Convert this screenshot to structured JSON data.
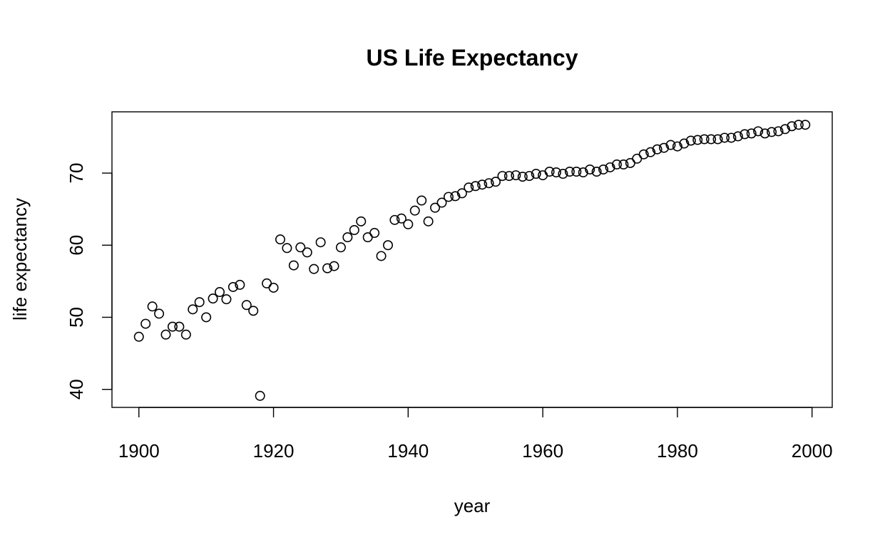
{
  "chart_data": {
    "type": "scatter",
    "title": "US Life Expectancy",
    "xlabel": "year",
    "ylabel": "life expectancy",
    "xlim": [
      1896,
      2003
    ],
    "ylim": [
      37.5,
      78.5
    ],
    "x_ticks": [
      1900,
      1920,
      1940,
      1960,
      1980,
      2000
    ],
    "y_ticks": [
      40,
      50,
      60,
      70
    ],
    "grid": false,
    "legend": "none",
    "marker": "open-circle",
    "series": [
      {
        "x": [
          1900,
          1901,
          1902,
          1903,
          1904,
          1905,
          1906,
          1907,
          1908,
          1909,
          1910,
          1911,
          1912,
          1913,
          1914,
          1915,
          1916,
          1917,
          1918,
          1919,
          1920,
          1921,
          1922,
          1923,
          1924,
          1925,
          1926,
          1927,
          1928,
          1929,
          1930,
          1931,
          1932,
          1933,
          1934,
          1935,
          1936,
          1937,
          1938,
          1939,
          1940,
          1941,
          1942,
          1943,
          1944,
          1945,
          1946,
          1947,
          1948,
          1949,
          1950,
          1951,
          1952,
          1953,
          1954,
          1955,
          1956,
          1957,
          1958,
          1959,
          1960,
          1961,
          1962,
          1963,
          1964,
          1965,
          1966,
          1967,
          1968,
          1969,
          1970,
          1971,
          1972,
          1973,
          1974,
          1975,
          1976,
          1977,
          1978,
          1979,
          1980,
          1981,
          1982,
          1983,
          1984,
          1985,
          1986,
          1987,
          1988,
          1989,
          1990,
          1991,
          1992,
          1993,
          1994,
          1995,
          1996,
          1997,
          1998,
          1999
        ],
        "y": [
          47.3,
          49.1,
          51.5,
          50.5,
          47.6,
          48.7,
          48.7,
          47.6,
          51.1,
          52.1,
          50.0,
          52.6,
          53.5,
          52.5,
          54.2,
          54.5,
          51.7,
          50.9,
          39.1,
          54.7,
          54.1,
          60.8,
          59.6,
          57.2,
          59.7,
          59.0,
          56.7,
          60.4,
          56.8,
          57.1,
          59.7,
          61.1,
          62.1,
          63.3,
          61.1,
          61.7,
          58.5,
          60.0,
          63.5,
          63.7,
          62.9,
          64.8,
          66.2,
          63.3,
          65.2,
          65.9,
          66.7,
          66.8,
          67.2,
          68.0,
          68.2,
          68.4,
          68.6,
          68.8,
          69.6,
          69.6,
          69.7,
          69.5,
          69.6,
          69.9,
          69.7,
          70.2,
          70.1,
          69.9,
          70.2,
          70.2,
          70.1,
          70.5,
          70.2,
          70.5,
          70.8,
          71.2,
          71.2,
          71.4,
          72.0,
          72.6,
          72.9,
          73.3,
          73.5,
          73.9,
          73.7,
          74.1,
          74.5,
          74.6,
          74.7,
          74.7,
          74.7,
          74.9,
          74.9,
          75.1,
          75.4,
          75.5,
          75.8,
          75.5,
          75.7,
          75.8,
          76.1,
          76.5,
          76.7,
          76.7
        ]
      }
    ]
  }
}
